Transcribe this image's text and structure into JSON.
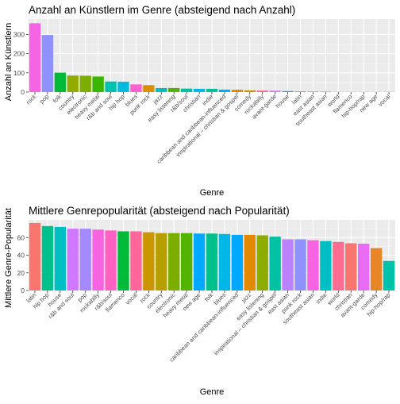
{
  "chart_data": [
    {
      "type": "bar",
      "title": "Anzahl an Künstlern im Genre (absteigend nach Anzahl)",
      "xlabel": "Genre",
      "ylabel": "Anzahl an Künstlern",
      "ylim": [
        0,
        380
      ],
      "yticks": [
        0,
        100,
        200,
        300
      ],
      "grid": true,
      "legend": "none",
      "categories": [
        "rock",
        "pop",
        "folk",
        "country",
        "electronic",
        "heavy metal",
        "r&b and soul",
        "hip hop",
        "blues",
        "punk rock",
        "jazz",
        "easy listening",
        "r&b/soul",
        "christian",
        "indie",
        "caribbean and caribbean-influenced",
        "inspirational – christian & gospel",
        "comedy",
        "rockabilly",
        "avant-garde",
        "house",
        "latin",
        "east asian",
        "southeast asian",
        "world",
        "flamenco",
        "hip-hop/rap",
        "new age",
        "vocal"
      ],
      "values": [
        358,
        297,
        101,
        86,
        85,
        81,
        55,
        54,
        40,
        36,
        21,
        21,
        18,
        17,
        17,
        13,
        12,
        9,
        8,
        7,
        5,
        4,
        2,
        2,
        1,
        1,
        1,
        1,
        1
      ],
      "colors": [
        "#F564E3",
        "#8F91FF",
        "#00BA38",
        "#93AA00",
        "#7CAE00",
        "#39B600",
        "#00C0AF",
        "#00BAE0",
        "#FD61D1",
        "#DB8E00",
        "#00BFC4",
        "#52B400",
        "#00C1A3",
        "#00B8E7",
        "#00C19A",
        "#00B0F6",
        "#E38900",
        "#D39200",
        "#FF6C91",
        "#DB72FB",
        "#00B0F6",
        "#F8766D",
        "#00BD5C",
        "#00C1A3",
        "#B983FF",
        "#E76BF3",
        "#FF62BC",
        "#9590FF",
        "#FF6A98"
      ]
    },
    {
      "type": "bar",
      "title": "Mittlere Genrepopularität (absteigend nach Popularität)",
      "xlabel": "Genre",
      "ylabel": "Mittlere Genre-Popularität",
      "ylim": [
        0,
        80
      ],
      "yticks": [
        0,
        20,
        40,
        60
      ],
      "grid": true,
      "legend": "none",
      "categories": [
        "latin",
        "hip hop",
        "house",
        "r&b and soul",
        "pop",
        "rockabilly",
        "r&b/soul",
        "flamenco",
        "vocal",
        "rock",
        "country",
        "electronic",
        "heavy metal",
        "new age",
        "folk",
        "blues",
        "caribbean and caribbean-influenced",
        "jazz",
        "easy listening",
        "inspirational – christian & gospel",
        "east asian",
        "punk rock",
        "southeast asian",
        "indie",
        "world",
        "christian",
        "avant-garde",
        "comedy",
        "hip-hop/rap"
      ],
      "values": [
        76.5,
        73,
        72,
        70,
        70,
        69,
        68,
        67,
        67,
        66,
        65,
        65,
        65,
        64.5,
        64.5,
        64,
        63,
        63,
        62.5,
        61,
        58,
        58,
        57,
        56,
        55,
        53.5,
        53,
        48,
        33.5
      ],
      "colors": [
        "#F8766D",
        "#00C08B",
        "#00BFC4",
        "#D078FF",
        "#A58AFF",
        "#F763E0",
        "#FF61C3",
        "#00BA38",
        "#FF6699",
        "#CC9600",
        "#B79F00",
        "#7CAE00",
        "#53B400",
        "#00A9FF",
        "#00C08B",
        "#00B8E7",
        "#00A9FF",
        "#E38900",
        "#8EAB00",
        "#00C1A3",
        "#BB81FF",
        "#8F91FF",
        "#F564E3",
        "#00BFC4",
        "#FF6C91",
        "#F8766D",
        "#E76BF3",
        "#E88526",
        "#00C1AA"
      ]
    }
  ]
}
